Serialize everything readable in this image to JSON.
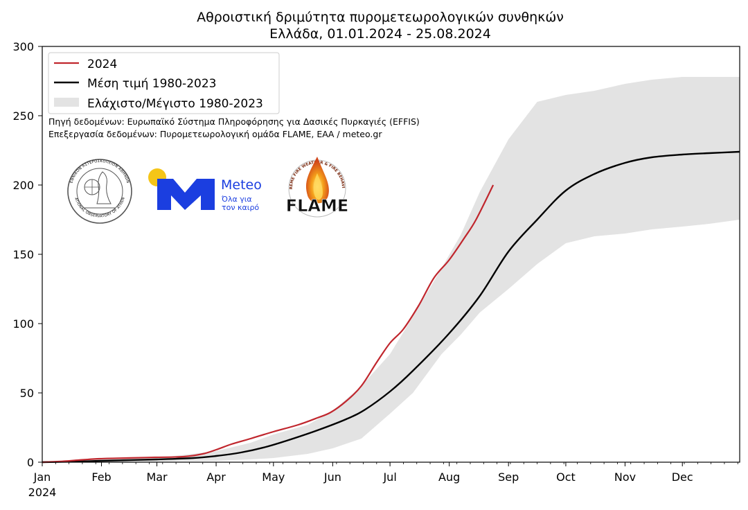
{
  "chart_data": {
    "type": "line",
    "title": "Αθροιστική δριμύτητα πυρομετεωρολογικών συνθηκών",
    "subtitle": "Ελλάδα, 01.01.2024 - 25.08.2024",
    "xlabel": "",
    "ylabel": "",
    "ylim": [
      0,
      300
    ],
    "xlim_day_of_year": [
      1,
      366
    ],
    "y_ticks": [
      0,
      50,
      100,
      150,
      200,
      250,
      300
    ],
    "x_ticks": [
      {
        "label": "Jan",
        "day": 1
      },
      {
        "label": "Feb",
        "day": 32
      },
      {
        "label": "Mar",
        "day": 61
      },
      {
        "label": "Apr",
        "day": 92
      },
      {
        "label": "May",
        "day": 122
      },
      {
        "label": "Jun",
        "day": 153
      },
      {
        "label": "Jul",
        "day": 183
      },
      {
        "label": "Aug",
        "day": 214
      },
      {
        "label": "Sep",
        "day": 245
      },
      {
        "label": "Oct",
        "day": 275
      },
      {
        "label": "Nov",
        "day": 306
      },
      {
        "label": "Dec",
        "day": 336
      }
    ],
    "year_label": "2024",
    "grid": false,
    "legend_position": "top-left",
    "series": [
      {
        "name": "2024",
        "kind": "line",
        "color": "#c0262d",
        "days": [
          1,
          10,
          20,
          31,
          45,
          60,
          75,
          85,
          92,
          100,
          110,
          122,
          135,
          145,
          152,
          160,
          168,
          176,
          183,
          190,
          198,
          206,
          214,
          222,
          228,
          237
        ],
        "values": [
          0,
          0.5,
          1.5,
          2.5,
          3,
          3.5,
          4,
          6,
          9,
          13,
          17,
          22,
          27,
          32,
          36,
          44,
          55,
          72,
          86,
          96,
          113,
          133,
          146,
          162,
          175,
          200
        ]
      },
      {
        "name": "Μέση τιμή 1980-2023",
        "kind": "line",
        "color": "#000000",
        "days": [
          1,
          20,
          32,
          61,
          80,
          92,
          105,
          118,
          130,
          145,
          160,
          170,
          183,
          195,
          214,
          230,
          245,
          260,
          275,
          290,
          306,
          320,
          336,
          350,
          366
        ],
        "values": [
          0,
          0.5,
          1,
          2,
          3,
          4.5,
          7,
          11,
          16,
          23,
          31,
          38,
          51,
          66,
          93,
          120,
          152,
          175,
          196,
          208,
          216,
          220,
          222,
          223,
          224
        ]
      },
      {
        "name": "Ελάχιστο/Μέγιστο 1980-2023",
        "kind": "band",
        "color": "#e3e3e3",
        "days": [
          1,
          30,
          61,
          92,
          110,
          122,
          140,
          153,
          168,
          183,
          195,
          210,
          220,
          230,
          245,
          260,
          275,
          290,
          306,
          320,
          336,
          350,
          366
        ],
        "lower": [
          0,
          0,
          0.5,
          1,
          2,
          3,
          6,
          10,
          17,
          35,
          50,
          78,
          92,
          108,
          125,
          143,
          158,
          163,
          165,
          168,
          170,
          172,
          175
        ],
        "upper": [
          0,
          2,
          3,
          8,
          14,
          20,
          27,
          37,
          55,
          78,
          105,
          140,
          164,
          195,
          233,
          260,
          265,
          268,
          273,
          276,
          278,
          278,
          278
        ]
      }
    ]
  },
  "legend": {
    "items": [
      "2024",
      "Μέση τιμή 1980-2023",
      "Ελάχιστο/Μέγιστο 1980-2023"
    ],
    "source": "Πηγή δεδομένων: Ευρωπαϊκό Σύστημα Πληροφόρησης για Δασικές Πυρκαγιές (EFFIS)",
    "processing": "Επεξεργασία δεδομένων: Πυρομετεωρολογική ομάδα FLAME, ΕΑΑ / meteo.gr"
  },
  "logos": {
    "noa_name": "ΕΘΝΙΚΟΝ ΑΣΤΕΡΟΣΚΟΠΕΙΟΝ ΑΘΗΝΩΝ",
    "noa_name_en": "NATIONAL OBSERVATORY OF ATHENS",
    "meteo_name": "Meteo",
    "meteo_tagline_1": "Όλα για",
    "meteo_tagline_2": "τον καιρό",
    "meteo_sun_color": "#f5c518",
    "meteo_brand_color": "#1b3ee0",
    "flame_name": "FLAME",
    "flame_ring": "EXTREME FIRE WEATHER & FIRE BEHAVIOUR"
  }
}
